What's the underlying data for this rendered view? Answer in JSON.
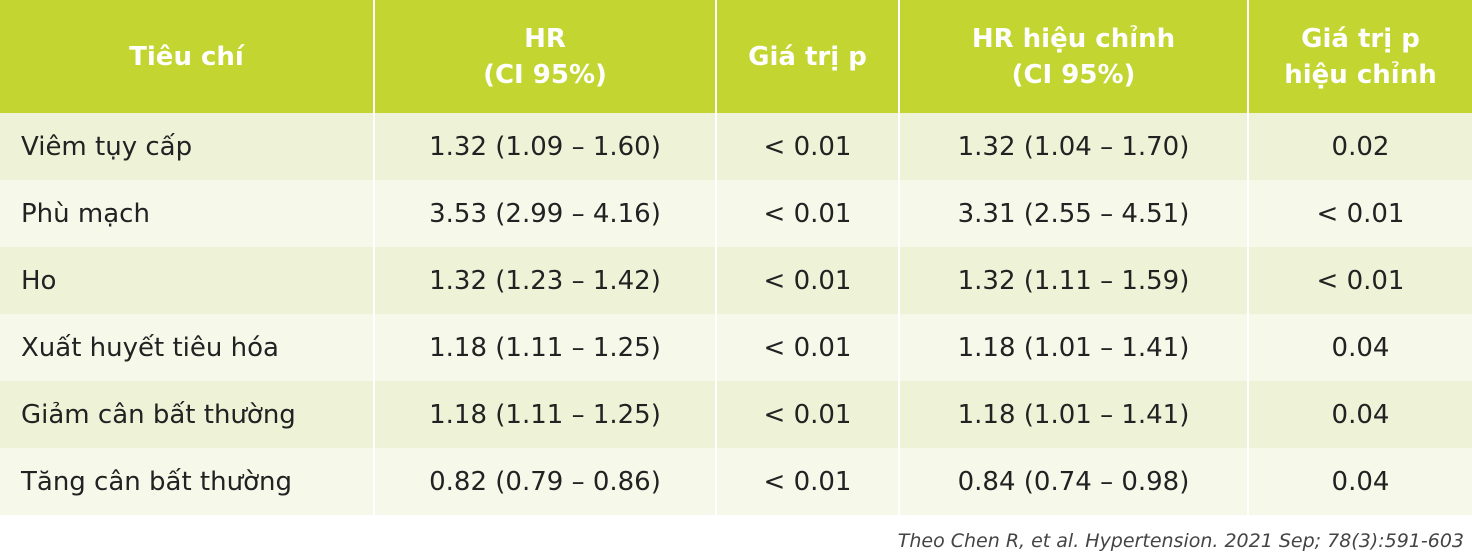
{
  "table": {
    "header": [
      [
        "Tiêu chí"
      ],
      [
        "HR",
        "(CI 95%)"
      ],
      [
        "Giá trị p"
      ],
      [
        "HR hiệu chỉnh",
        "(CI 95%)"
      ],
      [
        "Giá trị p",
        "hiệu chỉnh"
      ]
    ],
    "rows": [
      [
        "Viêm tụy cấp",
        "1.32 (1.09 – 1.60)",
        "< 0.01",
        "1.32 (1.04 – 1.70)",
        "0.02"
      ],
      [
        "Phù mạch",
        "3.53 (2.99 – 4.16)",
        "< 0.01",
        "3.31 (2.55 – 4.51)",
        "< 0.01"
      ],
      [
        "Ho",
        "1.32 (1.23 – 1.42)",
        "< 0.01",
        "1.32 (1.11 – 1.59)",
        "< 0.01"
      ],
      [
        "Xuất huyết tiêu hóa",
        "1.18 (1.11 – 1.25)",
        "< 0.01",
        "1.18 (1.01 – 1.41)",
        "0.04"
      ],
      [
        "Giảm cân bất thường",
        "1.18 (1.11 – 1.25)",
        "< 0.01",
        "1.18 (1.01 – 1.41)",
        "0.04"
      ],
      [
        "Tăng cân bất thường",
        "0.82 (0.79 – 0.86)",
        "< 0.01",
        "0.84 (0.74 – 0.98)",
        "0.04"
      ]
    ]
  },
  "source": "Theo Chen R, et al. Hypertension. 2021 Sep; 78(3):591-603"
}
